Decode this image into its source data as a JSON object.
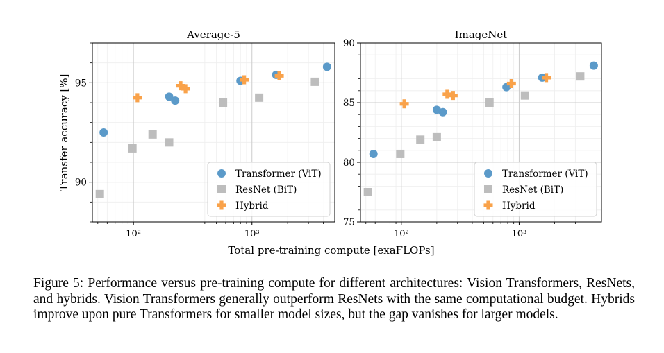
{
  "chart_data": [
    {
      "type": "scatter",
      "title": "Average-5",
      "xlabel": "Total pre-training compute [exaFLOPs]",
      "ylabel": "Transfer accuracy [%]",
      "xscale": "log",
      "xlim": [
        45,
        5000
      ],
      "ylim": [
        88,
        97
      ],
      "yticks": [
        90,
        95
      ],
      "xticks": [
        100,
        1000
      ],
      "xtick_labels": [
        "10²",
        "10³"
      ],
      "grid": true,
      "legend": "lower-right",
      "series": [
        {
          "name": "Transformer (ViT)",
          "marker": "circle",
          "color": "#5b9ac9",
          "points": [
            [
              56,
              92.5
            ],
            [
              200,
              94.3
            ],
            [
              225,
              94.1
            ],
            [
              800,
              95.1
            ],
            [
              1600,
              95.4
            ],
            [
              4300,
              95.8
            ]
          ]
        },
        {
          "name": "ResNet (BiT)",
          "marker": "square",
          "color": "#bdbdbd",
          "points": [
            [
              52,
              89.4
            ],
            [
              98,
              91.7
            ],
            [
              145,
              92.4
            ],
            [
              200,
              92.0
            ],
            [
              570,
              94.0
            ],
            [
              1150,
              94.25
            ],
            [
              3400,
              95.05
            ]
          ]
        },
        {
          "name": "Hybrid",
          "marker": "plus",
          "color": "#f9a24a",
          "points": [
            [
              108,
              94.25
            ],
            [
              250,
              94.85
            ],
            [
              275,
              94.7
            ],
            [
              860,
              95.15
            ],
            [
              1700,
              95.35
            ]
          ]
        }
      ]
    },
    {
      "type": "scatter",
      "title": "ImageNet",
      "xlabel": "Total pre-training compute [exaFLOPs]",
      "ylabel": "",
      "xscale": "log",
      "xlim": [
        45,
        5000
      ],
      "ylim": [
        75,
        90
      ],
      "yticks": [
        75,
        80,
        85,
        90
      ],
      "xticks": [
        100,
        1000
      ],
      "xtick_labels": [
        "10²",
        "10³"
      ],
      "grid": true,
      "legend": "lower-right",
      "series": [
        {
          "name": "Transformer (ViT)",
          "marker": "circle",
          "color": "#5b9ac9",
          "points": [
            [
              58,
              80.7
            ],
            [
              200,
              84.4
            ],
            [
              225,
              84.2
            ],
            [
              780,
              86.3
            ],
            [
              1570,
              87.1
            ],
            [
              4300,
              88.1
            ]
          ]
        },
        {
          "name": "ResNet (BiT)",
          "marker": "square",
          "color": "#bdbdbd",
          "points": [
            [
              52,
              77.5
            ],
            [
              98,
              80.7
            ],
            [
              145,
              81.9
            ],
            [
              200,
              82.1
            ],
            [
              560,
              85.0
            ],
            [
              1120,
              85.6
            ],
            [
              3300,
              87.2
            ]
          ]
        },
        {
          "name": "Hybrid",
          "marker": "plus",
          "color": "#f9a24a",
          "points": [
            [
              106,
              84.9
            ],
            [
              245,
              85.7
            ],
            [
              275,
              85.6
            ],
            [
              860,
              86.6
            ],
            [
              1700,
              87.1
            ]
          ]
        }
      ]
    }
  ],
  "caption": "Figure 5: Performance versus pre-training compute for different architectures: Vision Transformers, ResNets, and hybrids. Vision Transformers generally outperform ResNets with the same computational budget. Hybrids improve upon pure Transformers for smaller model sizes, but the gap vanishes for larger models."
}
